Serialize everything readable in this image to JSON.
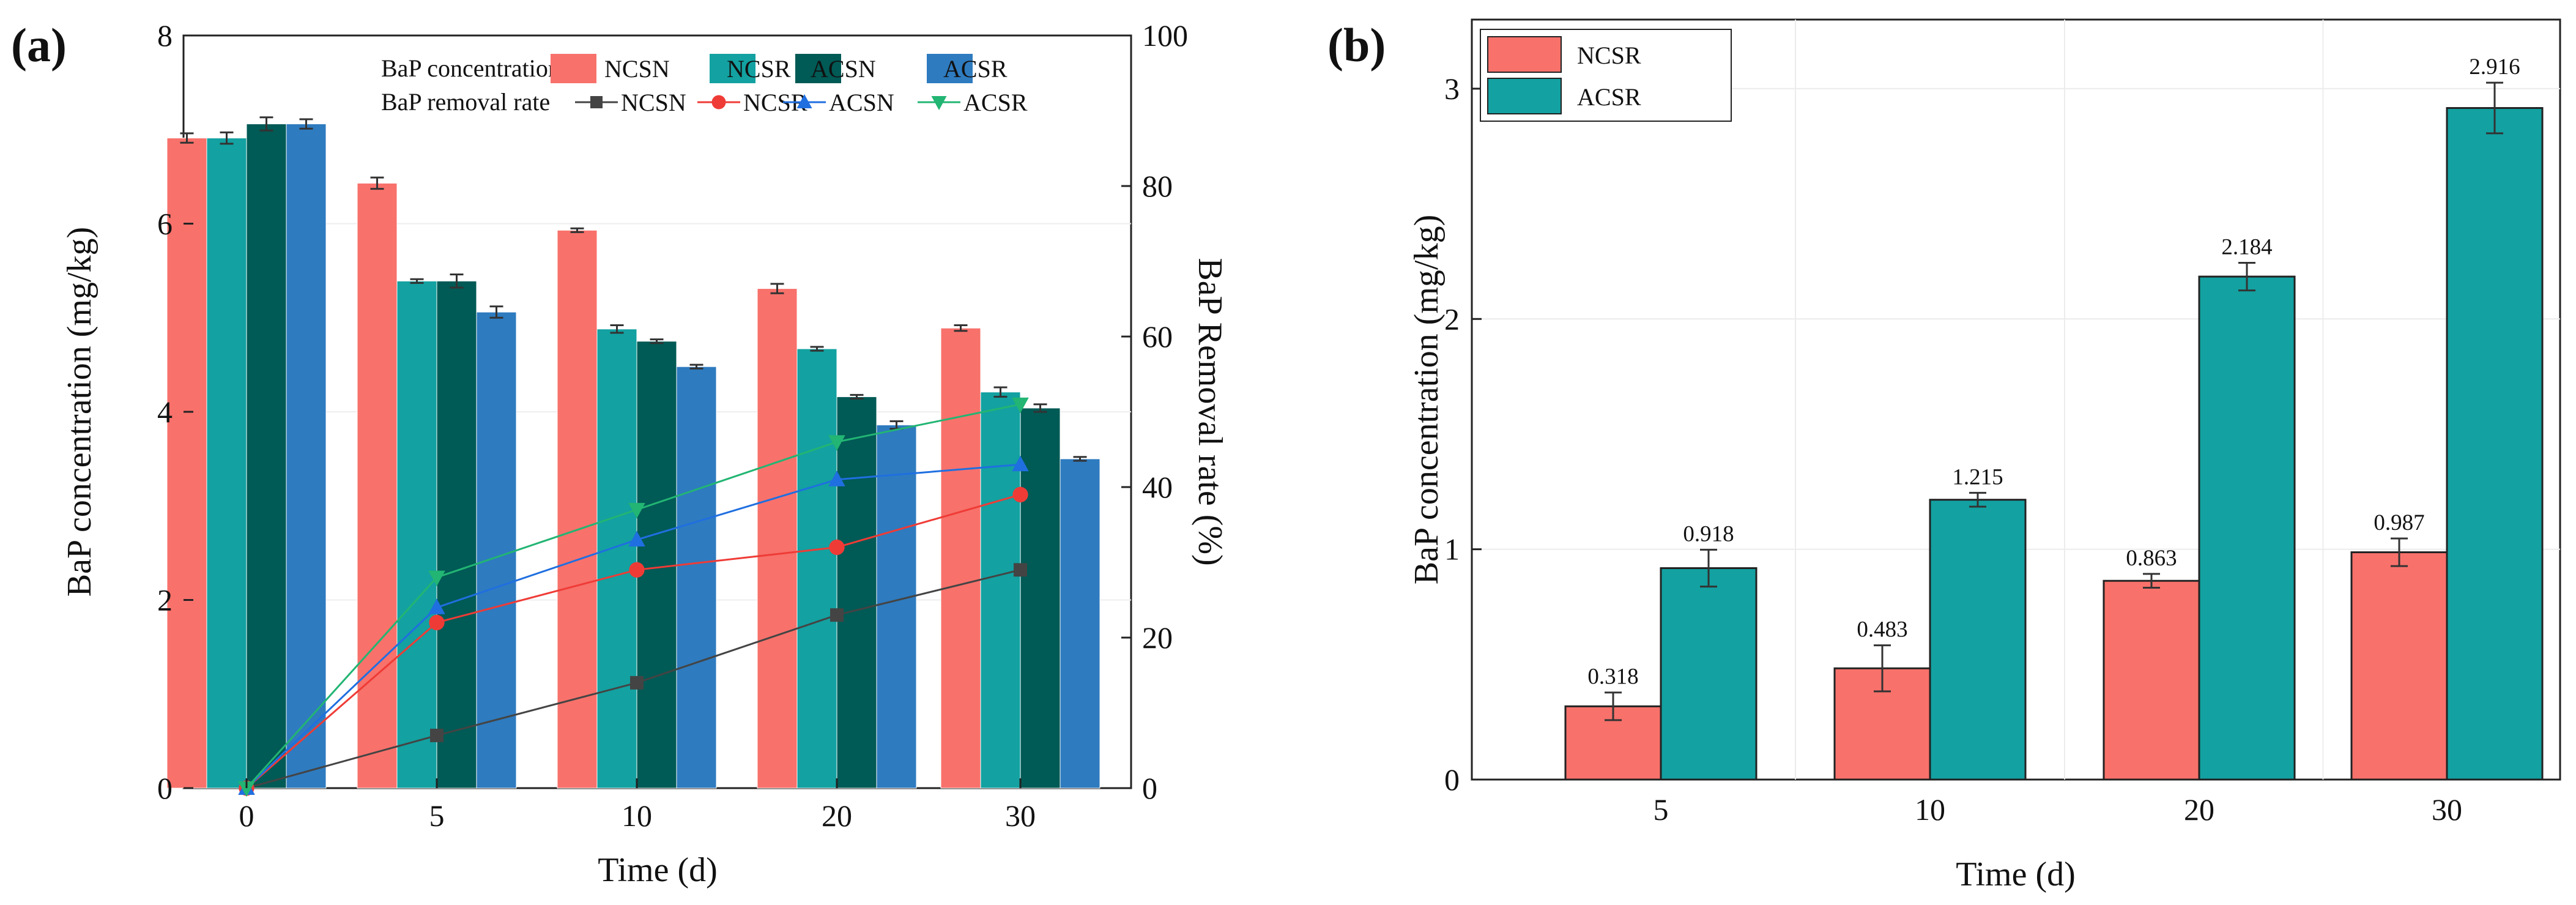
{
  "chart_data": [
    {
      "panel_label": "(a)",
      "type": "bar",
      "title": "",
      "xlabel": "Time (d)",
      "ylabel": "BaP concentration (mg/kg)",
      "y2label": "BaP Removal rate (%)",
      "categories": [
        "0",
        "5",
        "10",
        "20",
        "30"
      ],
      "ylim": [
        0,
        8
      ],
      "yticks": [
        "0",
        "2",
        "4",
        "6",
        "8"
      ],
      "y2lim": [
        0,
        100
      ],
      "y2ticks": [
        "0",
        "20",
        "40",
        "60",
        "80",
        "100"
      ],
      "legend_bar_title": "BaP concentration",
      "legend_line_title": "BaP removal rate",
      "series": [
        {
          "name": "NCSN",
          "color": "#f8716b",
          "values": [
            6.91,
            6.43,
            5.93,
            5.31,
            4.89
          ],
          "errors": [
            0.05,
            0.06,
            0.02,
            0.05,
            0.03
          ]
        },
        {
          "name": "NCSR",
          "color": "#13a1a1",
          "values": [
            6.91,
            5.39,
            4.88,
            4.67,
            4.21
          ],
          "errors": [
            0.06,
            0.02,
            0.04,
            0.02,
            0.05
          ]
        },
        {
          "name": "ACSN",
          "color": "#005a55",
          "values": [
            7.06,
            5.39,
            4.75,
            4.16,
            4.04
          ],
          "errors": [
            0.07,
            0.07,
            0.02,
            0.02,
            0.04
          ]
        },
        {
          "name": "ACSR",
          "color": "#2e7bbf",
          "values": [
            7.06,
            5.06,
            4.48,
            3.86,
            3.5
          ],
          "errors": [
            0.05,
            0.06,
            0.02,
            0.04,
            0.02
          ]
        }
      ],
      "line_series": [
        {
          "name": "NCSN",
          "color": "#444444",
          "marker": "square",
          "values": [
            0,
            7,
            14,
            23,
            29
          ]
        },
        {
          "name": "NCSR",
          "color": "#ef3b36",
          "marker": "circle",
          "values": [
            0,
            22,
            29,
            32,
            39
          ]
        },
        {
          "name": "ACSN",
          "color": "#1f6fe0",
          "marker": "triangle-up",
          "values": [
            0,
            24,
            33,
            41,
            43
          ]
        },
        {
          "name": "ACSR",
          "color": "#22b573",
          "marker": "triangle-down",
          "values": [
            0,
            28,
            37,
            46,
            51
          ]
        }
      ]
    },
    {
      "panel_label": "(b)",
      "type": "bar",
      "title": "",
      "xlabel": "Time (d)",
      "ylabel": "BaP concentration (mg/kg)",
      "categories": [
        "5",
        "10",
        "20",
        "30"
      ],
      "ylim": [
        0,
        3.3
      ],
      "yticks": [
        "0",
        "1",
        "2",
        "3"
      ],
      "series": [
        {
          "name": "NCSR",
          "color": "#f8716b",
          "values": [
            0.318,
            0.483,
            0.863,
            0.987
          ],
          "labels": [
            "0.318",
            "0.483",
            "0.863",
            "0.987"
          ],
          "errors": [
            0.06,
            0.1,
            0.03,
            0.06
          ]
        },
        {
          "name": "ACSR",
          "color": "#13a1a1",
          "values": [
            0.918,
            1.215,
            2.184,
            2.916
          ],
          "labels": [
            "0.918",
            "1.215",
            "2.184",
            "2.916"
          ],
          "errors": [
            0.08,
            0.03,
            0.06,
            0.11
          ]
        }
      ]
    }
  ]
}
